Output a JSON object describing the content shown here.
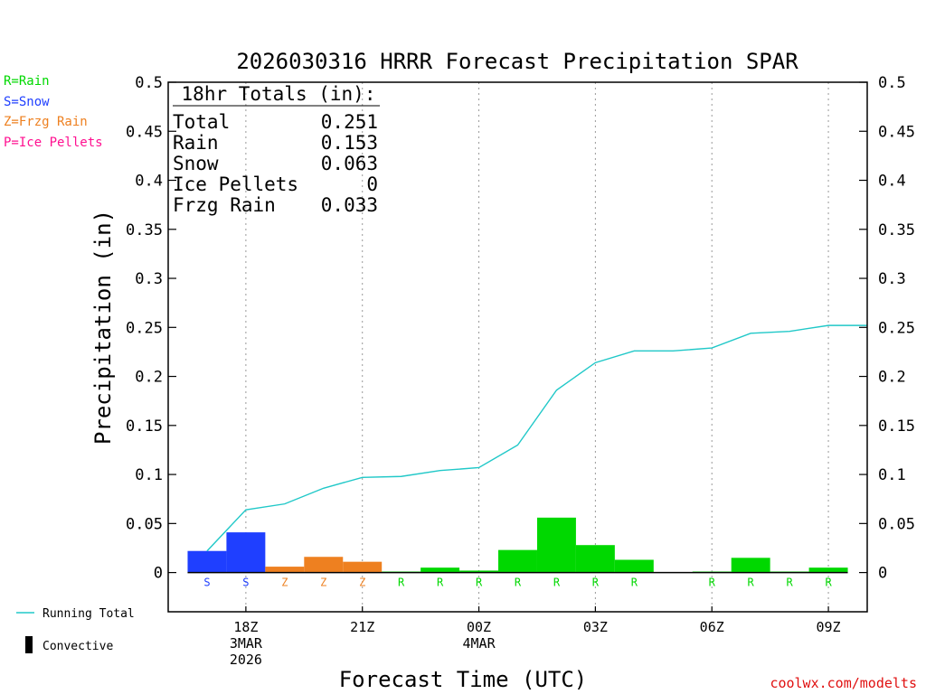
{
  "colors": {
    "rain": "#00d800",
    "snow": "#1f3fff",
    "frzg_rain": "#ee8020",
    "ice_pellets": "#ff1090",
    "running_total": "#20c8c8",
    "convective": "#000000",
    "footer": "#e01010"
  },
  "legend": {
    "rain": "R=Rain",
    "snow": "S=Snow",
    "frzg": "Z=Frzg Rain",
    "ice": "P=Ice Pellets"
  },
  "bottom_legend": {
    "running_total": "Running Total",
    "convective": "Convective"
  },
  "footer": "coolwx.com/modelts",
  "totals_box": {
    "title": "18hr Totals (in):",
    "rows": [
      {
        "label": "Total",
        "value": "0.251"
      },
      {
        "label": "Rain",
        "value": "0.153"
      },
      {
        "label": "Snow",
        "value": "0.063"
      },
      {
        "label": "Ice Pellets",
        "value": "0"
      },
      {
        "label": "Frzg Rain",
        "value": "0.033"
      }
    ]
  },
  "chart_data": {
    "type": "bar",
    "title": "2026030316 HRRR Forecast Precipitation SPAR",
    "xlabel": "Forecast Time (UTC)",
    "ylabel": "Precipitation (in)",
    "ylim": [
      -0.04,
      0.5
    ],
    "yticks": [
      "0",
      "0.05",
      "0.1",
      "0.15",
      "0.2",
      "0.25",
      "0.3",
      "0.35",
      "0.4",
      "0.45",
      "0.5"
    ],
    "ytick_values": [
      0,
      0.05,
      0.1,
      0.15,
      0.2,
      0.25,
      0.3,
      0.35,
      0.4,
      0.45,
      0.5
    ],
    "xlim_hours": [
      16.0,
      34.0
    ],
    "xticks": [
      {
        "hour": 18,
        "lines": [
          "18Z",
          "3MAR",
          "2026"
        ]
      },
      {
        "hour": 21,
        "lines": [
          "21Z"
        ]
      },
      {
        "hour": 24,
        "lines": [
          "00Z",
          "4MAR"
        ]
      },
      {
        "hour": 27,
        "lines": [
          "03Z"
        ]
      },
      {
        "hour": 30,
        "lines": [
          "06Z"
        ]
      },
      {
        "hour": 33,
        "lines": [
          "09Z"
        ]
      }
    ],
    "grid": "vertical dotted at 3-hour ticks",
    "bars": [
      {
        "start": 16.5,
        "end": 17.5,
        "value": 0.022,
        "type": "S"
      },
      {
        "start": 17.5,
        "end": 18.5,
        "value": 0.041,
        "type": "S"
      },
      {
        "start": 18.5,
        "end": 19.5,
        "value": 0.006,
        "type": "Z"
      },
      {
        "start": 19.5,
        "end": 20.5,
        "value": 0.016,
        "type": "Z"
      },
      {
        "start": 20.5,
        "end": 21.5,
        "value": 0.011,
        "type": "Z"
      },
      {
        "start": 21.5,
        "end": 22.5,
        "value": 0.001,
        "type": "R"
      },
      {
        "start": 22.5,
        "end": 23.5,
        "value": 0.005,
        "type": "R"
      },
      {
        "start": 23.5,
        "end": 24.5,
        "value": 0.002,
        "type": "R"
      },
      {
        "start": 24.5,
        "end": 25.5,
        "value": 0.023,
        "type": "R"
      },
      {
        "start": 25.5,
        "end": 26.5,
        "value": 0.056,
        "type": "R"
      },
      {
        "start": 26.5,
        "end": 27.5,
        "value": 0.028,
        "type": "R"
      },
      {
        "start": 27.5,
        "end": 28.5,
        "value": 0.013,
        "type": "R"
      },
      {
        "start": 29.5,
        "end": 30.5,
        "value": 0.001,
        "type": "R"
      },
      {
        "start": 30.5,
        "end": 31.5,
        "value": 0.015,
        "type": "R"
      },
      {
        "start": 31.5,
        "end": 32.5,
        "value": 0.001,
        "type": "R"
      },
      {
        "start": 32.5,
        "end": 33.5,
        "value": 0.005,
        "type": "R"
      }
    ],
    "running_total": [
      {
        "hour": 17,
        "value": 0.022
      },
      {
        "hour": 18,
        "value": 0.064
      },
      {
        "hour": 19,
        "value": 0.07
      },
      {
        "hour": 20,
        "value": 0.086
      },
      {
        "hour": 21,
        "value": 0.097
      },
      {
        "hour": 22,
        "value": 0.098
      },
      {
        "hour": 23,
        "value": 0.104
      },
      {
        "hour": 24,
        "value": 0.107
      },
      {
        "hour": 25,
        "value": 0.13
      },
      {
        "hour": 26,
        "value": 0.186
      },
      {
        "hour": 27,
        "value": 0.214
      },
      {
        "hour": 28,
        "value": 0.226
      },
      {
        "hour": 29,
        "value": 0.226
      },
      {
        "hour": 30,
        "value": 0.229
      },
      {
        "hour": 31,
        "value": 0.244
      },
      {
        "hour": 32,
        "value": 0.246
      },
      {
        "hour": 33,
        "value": 0.252
      },
      {
        "hour": 34,
        "value": 0.252
      }
    ],
    "legend_placement": "left outside"
  }
}
